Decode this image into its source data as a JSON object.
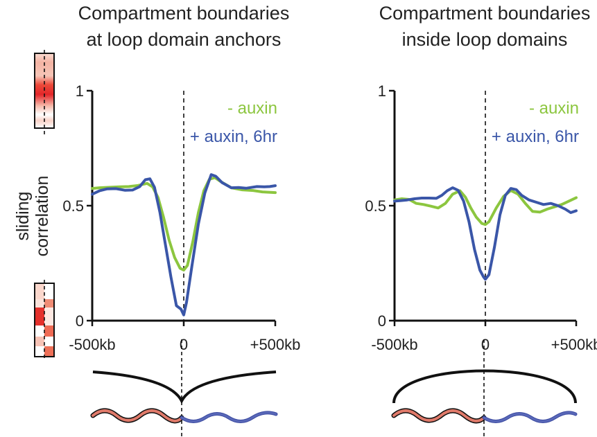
{
  "y_axis_label": [
    "sliding",
    "correlation"
  ],
  "colors": {
    "minus_auxin": "#8cc63f",
    "plus_auxin": "#3a56a8",
    "heat_strong": "#e8262a",
    "heat_light": "#f8c8bd",
    "chromatin_left": "#e07a6a",
    "chromatin_right": "#5968b8"
  },
  "chart_data": [
    {
      "type": "line",
      "title": [
        "Compartment boundaries",
        "at loop domain anchors"
      ],
      "xlabel": "",
      "ylabel": "sliding correlation",
      "xlim": [
        -500,
        500
      ],
      "ylim": [
        0,
        1
      ],
      "x_tick_labels": [
        "-500kb",
        "0",
        "+500kb"
      ],
      "y_tick_labels": [
        "0",
        "0.5",
        "1"
      ],
      "y_ticks": [
        0,
        0.5,
        1
      ],
      "boundary_marker_x": 0,
      "legend_placement": "top-right",
      "series": [
        {
          "name": "- auxin",
          "color": "#8cc63f",
          "x": [
            -500,
            -460,
            -400,
            -350,
            -300,
            -250,
            -200,
            -170,
            -140,
            -110,
            -80,
            -50,
            -20,
            0,
            20,
            50,
            80,
            110,
            140,
            170,
            200,
            260,
            320,
            380,
            430,
            500
          ],
          "y": [
            0.575,
            0.578,
            0.58,
            0.582,
            0.583,
            0.588,
            0.597,
            0.582,
            0.535,
            0.448,
            0.35,
            0.275,
            0.228,
            0.22,
            0.24,
            0.345,
            0.47,
            0.565,
            0.615,
            0.622,
            0.606,
            0.578,
            0.569,
            0.566,
            0.56,
            0.557
          ]
        },
        {
          "name": "+ auxin, 6hr",
          "color": "#3a56a8",
          "x": [
            -500,
            -460,
            -420,
            -370,
            -320,
            -280,
            -240,
            -210,
            -185,
            -160,
            -130,
            -100,
            -70,
            -40,
            -15,
            0,
            15,
            45,
            80,
            115,
            150,
            175,
            210,
            260,
            300,
            340,
            400,
            440,
            470,
            500
          ],
          "y": [
            0.55,
            0.565,
            0.573,
            0.574,
            0.567,
            0.568,
            0.583,
            0.613,
            0.617,
            0.58,
            0.47,
            0.33,
            0.19,
            0.065,
            0.05,
            0.025,
            0.08,
            0.24,
            0.42,
            0.555,
            0.635,
            0.628,
            0.6,
            0.578,
            0.579,
            0.576,
            0.583,
            0.582,
            0.583,
            0.587
          ]
        }
      ]
    },
    {
      "type": "line",
      "title": [
        "Compartment boundaries",
        "inside loop domains"
      ],
      "xlabel": "",
      "ylabel": "sliding correlation",
      "xlim": [
        -500,
        500
      ],
      "ylim": [
        0,
        1
      ],
      "x_tick_labels": [
        "-500kb",
        "0",
        "+500kb"
      ],
      "y_tick_labels": [
        "0",
        "0.5",
        "1"
      ],
      "y_ticks": [
        0,
        0.5,
        1
      ],
      "boundary_marker_x": 0,
      "legend_placement": "top-right",
      "series": [
        {
          "name": "- auxin",
          "color": "#8cc63f",
          "x": [
            -500,
            -460,
            -420,
            -380,
            -340,
            -300,
            -260,
            -220,
            -180,
            -140,
            -110,
            -80,
            -50,
            -20,
            0,
            20,
            60,
            100,
            140,
            180,
            220,
            260,
            300,
            340,
            380,
            420,
            460,
            500
          ],
          "y": [
            0.525,
            0.53,
            0.527,
            0.51,
            0.505,
            0.498,
            0.49,
            0.51,
            0.55,
            0.565,
            0.537,
            0.49,
            0.45,
            0.423,
            0.418,
            0.43,
            0.49,
            0.54,
            0.566,
            0.55,
            0.51,
            0.475,
            0.472,
            0.485,
            0.495,
            0.505,
            0.52,
            0.535
          ]
        },
        {
          "name": "+ auxin, 6hr",
          "color": "#3a56a8",
          "x": [
            -500,
            -470,
            -430,
            -390,
            -350,
            -310,
            -270,
            -240,
            -210,
            -180,
            -150,
            -120,
            -90,
            -60,
            -30,
            -10,
            0,
            20,
            50,
            80,
            110,
            140,
            170,
            200,
            240,
            280,
            320,
            360,
            400,
            440,
            470,
            500
          ],
          "y": [
            0.52,
            0.522,
            0.525,
            0.53,
            0.533,
            0.533,
            0.532,
            0.545,
            0.565,
            0.578,
            0.567,
            0.52,
            0.43,
            0.31,
            0.22,
            0.19,
            0.18,
            0.2,
            0.32,
            0.46,
            0.545,
            0.575,
            0.57,
            0.545,
            0.525,
            0.515,
            0.505,
            0.51,
            0.5,
            0.485,
            0.47,
            0.478
          ]
        }
      ]
    }
  ]
}
